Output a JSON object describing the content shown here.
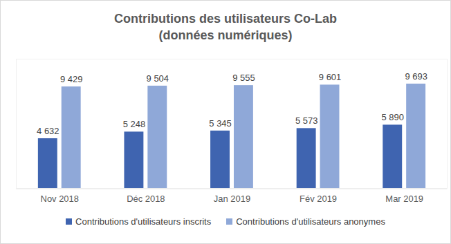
{
  "chart_data": {
    "type": "bar",
    "title": "Contributions des utilisateurs Co-Lab",
    "subtitle": "(données numériques)",
    "categories": [
      "Nov 2018",
      "Déc 2018",
      "Jan 2019",
      "Fév 2019",
      "Mar 2019"
    ],
    "series": [
      {
        "name": "Contributions d'utilisateurs inscrits",
        "color": "#3f64b0",
        "values": [
          4632,
          5248,
          5345,
          5573,
          5890
        ],
        "value_labels": [
          "4 632",
          "5 248",
          "5 345",
          "5 573",
          "5 890"
        ]
      },
      {
        "name": "Contributions d'utilisateurs anonymes",
        "color": "#8fa8d8",
        "values": [
          9429,
          9504,
          9555,
          9601,
          9693
        ],
        "value_labels": [
          "9 429",
          "9 504",
          "9 555",
          "9 601",
          "9 693"
        ]
      }
    ],
    "ylim": [
      0,
      12000
    ],
    "data_labels": true,
    "tick_labels": "x",
    "legend": "bottom",
    "grid": false
  }
}
